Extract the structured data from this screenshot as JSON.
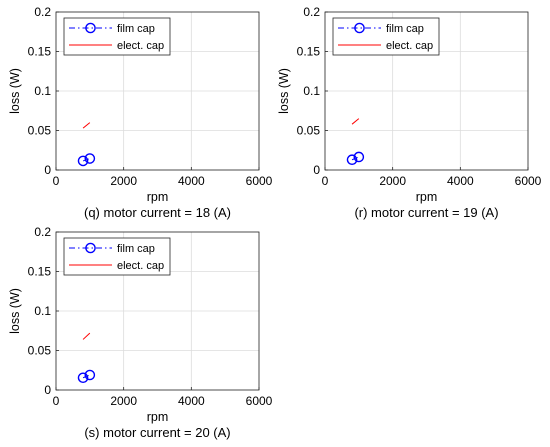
{
  "chart_data": [
    {
      "type": "line",
      "caption": "(q) motor current = 18 (A)",
      "xlabel": "rpm",
      "ylabel": "loss (W)",
      "xlim": [
        0,
        6000
      ],
      "ylim": [
        0,
        0.2
      ],
      "xticks": [
        0,
        2000,
        4000,
        6000
      ],
      "yticks": [
        0,
        0.05,
        0.1,
        0.15,
        0.2
      ],
      "xtick_labels": [
        "0",
        "2000",
        "4000",
        "6000"
      ],
      "ytick_labels": [
        "0",
        "0.05",
        "0.1",
        "0.15",
        "0.2"
      ],
      "grid": true,
      "legend": "top-left",
      "series": [
        {
          "name": "film cap",
          "color": "#0000ff",
          "linestyle": "dash-dot",
          "marker": "circle",
          "x": [
            800,
            1000
          ],
          "y": [
            0.0115,
            0.0145
          ]
        },
        {
          "name": "elect. cap",
          "color": "#ff0000",
          "linestyle": "solid",
          "marker": "none",
          "x": [
            800,
            1000
          ],
          "y": [
            0.053,
            0.06
          ]
        }
      ]
    },
    {
      "type": "line",
      "caption": "(r) motor current = 19 (A)",
      "xlabel": "rpm",
      "ylabel": "loss (W)",
      "xlim": [
        0,
        6000
      ],
      "ylim": [
        0,
        0.2
      ],
      "xticks": [
        0,
        2000,
        4000,
        6000
      ],
      "yticks": [
        0,
        0.05,
        0.1,
        0.15,
        0.2
      ],
      "xtick_labels": [
        "0",
        "2000",
        "4000",
        "6000"
      ],
      "ytick_labels": [
        "0",
        "0.05",
        "0.1",
        "0.15",
        "0.2"
      ],
      "grid": true,
      "legend": "top-left",
      "series": [
        {
          "name": "film cap",
          "color": "#0000ff",
          "linestyle": "dash-dot",
          "marker": "circle",
          "x": [
            800,
            1000
          ],
          "y": [
            0.013,
            0.0165
          ]
        },
        {
          "name": "elect. cap",
          "color": "#ff0000",
          "linestyle": "solid",
          "marker": "none",
          "x": [
            800,
            1000
          ],
          "y": [
            0.058,
            0.065
          ]
        }
      ]
    },
    {
      "type": "line",
      "caption": "(s) motor current = 20 (A)",
      "xlabel": "rpm",
      "ylabel": "loss (W)",
      "xlim": [
        0,
        6000
      ],
      "ylim": [
        0,
        0.2
      ],
      "xticks": [
        0,
        2000,
        4000,
        6000
      ],
      "yticks": [
        0,
        0.05,
        0.1,
        0.15,
        0.2
      ],
      "xtick_labels": [
        "0",
        "2000",
        "4000",
        "6000"
      ],
      "ytick_labels": [
        "0",
        "0.05",
        "0.1",
        "0.15",
        "0.2"
      ],
      "grid": true,
      "legend": "top-left",
      "series": [
        {
          "name": "film cap",
          "color": "#0000ff",
          "linestyle": "dash-dot",
          "marker": "circle",
          "x": [
            800,
            1000
          ],
          "y": [
            0.0155,
            0.019
          ]
        },
        {
          "name": "elect. cap",
          "color": "#ff0000",
          "linestyle": "solid",
          "marker": "none",
          "x": [
            800,
            1000
          ],
          "y": [
            0.064,
            0.072
          ]
        }
      ]
    }
  ]
}
